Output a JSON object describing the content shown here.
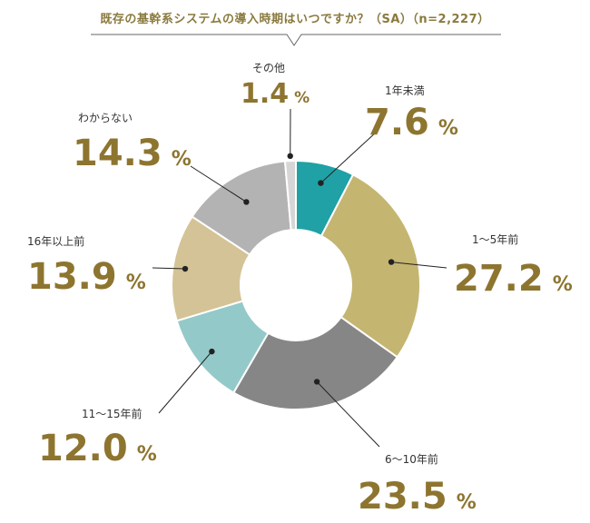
{
  "chart_data": {
    "type": "pie",
    "title": "既存の基幹系システムの導入時期はいつですか？（SA）（n=2,227）",
    "unit": "%",
    "slices": [
      {
        "label": "1年未満",
        "value": 7.6,
        "color": "#1fa1a5"
      },
      {
        "label": "1～5年前",
        "value": 27.2,
        "color": "#c4b571"
      },
      {
        "label": "6～10年前",
        "value": 23.5,
        "color": "#868686"
      },
      {
        "label": "11～15年前",
        "value": 12.0,
        "color": "#94c9c9"
      },
      {
        "label": "16年以上前",
        "value": 13.9,
        "color": "#d4c396"
      },
      {
        "label": "わからない",
        "value": 14.3,
        "color": "#b3b3b3"
      },
      {
        "label": "その他",
        "value": 1.4,
        "color": "#d6d6d6"
      }
    ]
  }
}
